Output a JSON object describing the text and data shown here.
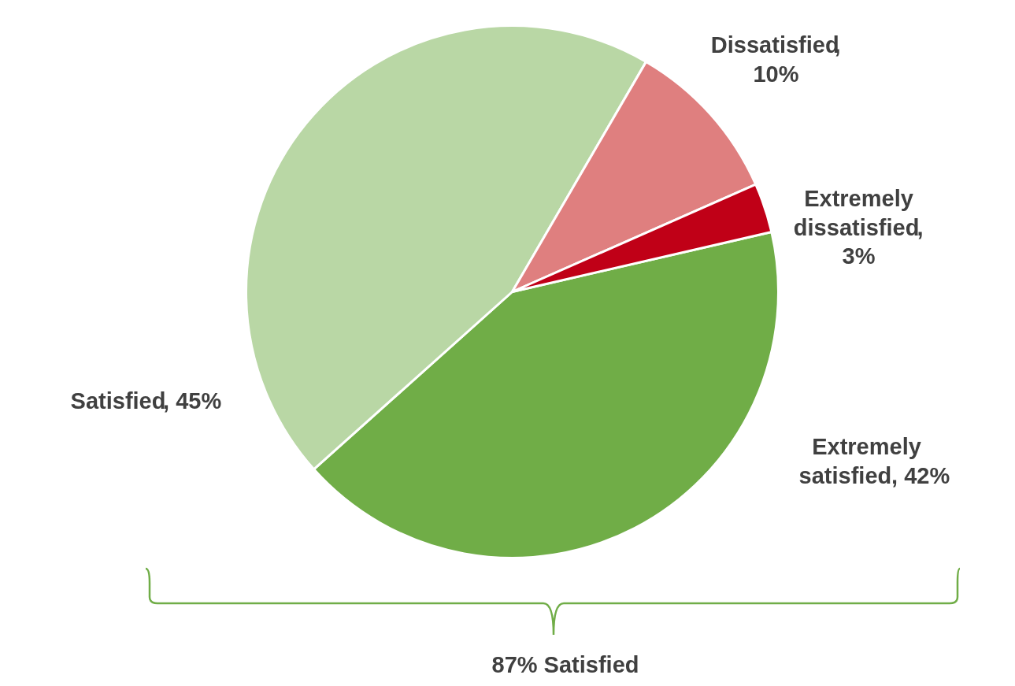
{
  "chart_data": {
    "type": "pie",
    "categories": [
      "Extremely satisfied",
      "Satisfied",
      "Dissatisfied",
      "Extremely dissatisfied"
    ],
    "values": [
      42,
      45,
      10,
      3
    ],
    "colors": [
      "#70ad47",
      "#b9d7a5",
      "#df7f7f",
      "#c00017"
    ],
    "value_labels": [
      ", 42%",
      ", 45%",
      ", 10%",
      ", 3%"
    ],
    "annotations": [
      "87% Satisfied"
    ]
  }
}
